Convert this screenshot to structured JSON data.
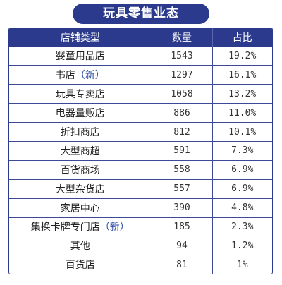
{
  "title": "玩具零售业态",
  "colors": {
    "accent": "#2b3a8c",
    "new_tag": "#2b4aa8"
  },
  "table": {
    "headers": [
      "店铺类型",
      "数量",
      "占比"
    ],
    "rows": [
      {
        "name": "婴童用品店",
        "tag": "",
        "count": "1543",
        "share": "19.2%"
      },
      {
        "name": "书店",
        "tag": "（新）",
        "count": "1297",
        "share": "16.1%"
      },
      {
        "name": "玩具专卖店",
        "tag": "",
        "count": "1058",
        "share": "13.2%"
      },
      {
        "name": "电器量贩店",
        "tag": "",
        "count": "886",
        "share": "11.0%"
      },
      {
        "name": "折扣商店",
        "tag": "",
        "count": "812",
        "share": "10.1%"
      },
      {
        "name": "大型商超",
        "tag": "",
        "count": "591",
        "share": "7.3%"
      },
      {
        "name": "百货商场",
        "tag": "",
        "count": "558",
        "share": "6.9%"
      },
      {
        "name": "大型杂货店",
        "tag": "",
        "count": "557",
        "share": "6.9%"
      },
      {
        "name": "家居中心",
        "tag": "",
        "count": "390",
        "share": "4.8%"
      },
      {
        "name": "集换卡牌专门店",
        "tag": "（新）",
        "count": "185",
        "share": "2.3%"
      },
      {
        "name": "其他",
        "tag": "",
        "count": "94",
        "share": "1.2%"
      },
      {
        "name": "百货店",
        "tag": "",
        "count": "81",
        "share": "1%"
      }
    ]
  }
}
